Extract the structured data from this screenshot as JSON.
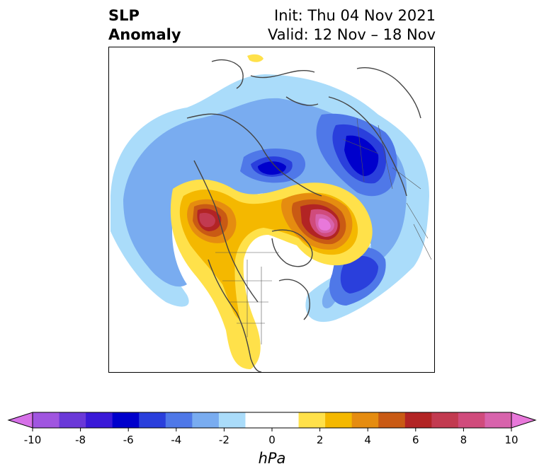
{
  "title": {
    "line1": "SLP",
    "line2": "Anomaly",
    "init": "Init: Thu 04 Nov 2021",
    "valid": "Valid: 12 Nov – 18 Nov"
  },
  "colorbar": {
    "units": "hPa",
    "min": -10,
    "max": 10,
    "ticks": [
      "-10",
      "-8",
      "-6",
      "-4",
      "-2",
      "0",
      "2",
      "4",
      "6",
      "8",
      "10"
    ],
    "colors": [
      "#d670e8",
      "#a055e0",
      "#6a38d8",
      "#3a19d8",
      "#0000cc",
      "#2a3fdc",
      "#4f78e8",
      "#79acf0",
      "#aadcfa",
      "#ffffff",
      "#ffffff",
      "#ffe14a",
      "#f4b800",
      "#e58c10",
      "#c95a14",
      "#b22424",
      "#c23a50",
      "#d04b7c",
      "#d863ac",
      "#e878da"
    ]
  },
  "map": {
    "projection": "north polar stereographic",
    "region": "Northern Hemisphere"
  }
}
